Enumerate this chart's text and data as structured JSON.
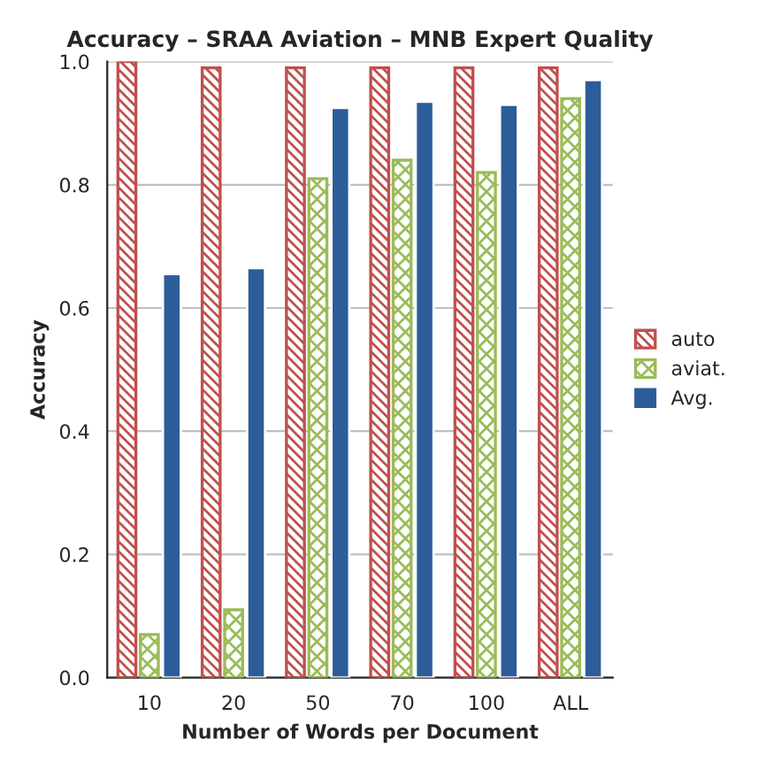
{
  "chart_data": {
    "type": "bar",
    "title": "Accuracy – SRAA Aviation – MNB Expert Quality",
    "xlabel": "Number of Words per Document",
    "ylabel": "Accuracy",
    "categories": [
      "10",
      "20",
      "50",
      "70",
      "100",
      "ALL"
    ],
    "series": [
      {
        "name": "auto",
        "color": "#c0504d",
        "values": [
          1.0,
          0.99,
          0.99,
          0.99,
          0.99,
          0.99
        ]
      },
      {
        "name": "aviat.",
        "color": "#9bbb59",
        "values": [
          0.07,
          0.11,
          0.81,
          0.84,
          0.82,
          0.94
        ]
      },
      {
        "name": "Avg.",
        "color": "#2c5d99",
        "values": [
          0.655,
          0.665,
          0.925,
          0.935,
          0.93,
          0.97
        ]
      }
    ],
    "ylim": [
      0,
      1
    ],
    "yticks": [
      {
        "value": 0,
        "label": "0.0"
      },
      0.2,
      0.4,
      0.6,
      0.8,
      {
        "value": 1,
        "label": "1.0"
      }
    ],
    "grid": "y",
    "legend": "right"
  }
}
